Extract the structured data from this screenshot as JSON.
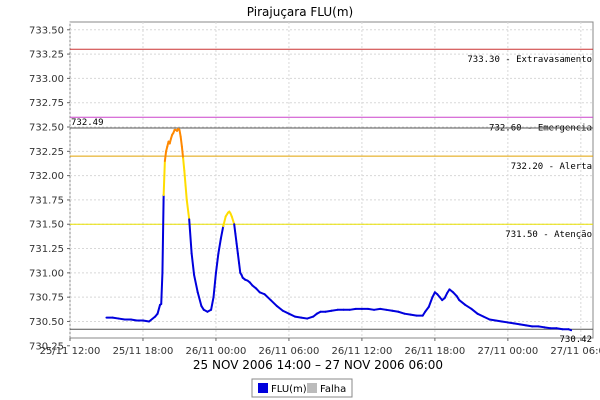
{
  "chart_data": {
    "type": "line",
    "title": "Pirajuçara FLU(m)",
    "xlabel": "25 NOV 2006 14:00 – 27 NOV 2006 06:00",
    "ylabel": "",
    "x_unit": "hours since 25/11 12:00",
    "xlim": [
      0,
      43
    ],
    "ylim": [
      730.33,
      733.58
    ],
    "y_ticks": [
      730.25,
      730.5,
      730.75,
      731.0,
      731.25,
      731.5,
      731.75,
      732.0,
      732.25,
      732.5,
      732.75,
      733.0,
      733.25,
      733.5
    ],
    "y_tick_labels": [
      "730.25",
      "730.50",
      "730.75",
      "731.00",
      "731.25",
      "731.50",
      "731.75",
      "732.00",
      "732.25",
      "732.50",
      "732.75",
      "733.00",
      "733.25",
      "733.50"
    ],
    "x_ticks": [
      0,
      6,
      12,
      18,
      24,
      30,
      36,
      42
    ],
    "x_tick_labels": [
      "25/11 12:00",
      "25/11 18:00",
      "26/11 00:00",
      "26/11 06:00",
      "26/11 12:00",
      "26/11 18:00",
      "27/11 00:00",
      "27/11 06:00"
    ],
    "grid": true,
    "thresholds": [
      {
        "label": "733.30 - Extravasamento",
        "value": 733.3,
        "color": "#cc3333"
      },
      {
        "label": "732.60 - Emergencia",
        "value": 732.6,
        "color": "#cc44cc"
      },
      {
        "label": "732.20 - Alerta",
        "value": 732.2,
        "color": "#e0a000"
      },
      {
        "label": "731.50 - Atenção",
        "value": 731.5,
        "color": "#e8e000"
      }
    ],
    "extra_lines": [
      {
        "label": "732.49",
        "value": 732.49,
        "color": "#555555"
      },
      {
        "label": "730.42",
        "value": 730.42,
        "color": "#555555"
      }
    ],
    "series": [
      {
        "name": "FLU(m)",
        "color": "#0000dd",
        "x": [
          3.0,
          3.5,
          4.0,
          4.5,
          5.0,
          5.5,
          6.0,
          6.5,
          7.0,
          7.2,
          7.4,
          7.5,
          7.6,
          7.7,
          7.8,
          7.9,
          8.0,
          8.1,
          8.2,
          8.3,
          8.4,
          8.5,
          8.6,
          8.7,
          8.8,
          8.9,
          9.0,
          9.1,
          9.2,
          9.3,
          9.4,
          9.5,
          9.6,
          9.8,
          10.0,
          10.2,
          10.5,
          10.8,
          11.0,
          11.3,
          11.6,
          11.8,
          12.0,
          12.2,
          12.4,
          12.6,
          12.8,
          13.0,
          13.1,
          13.2,
          13.3,
          13.5,
          13.6,
          13.7,
          13.8,
          13.9,
          14.0,
          14.1,
          14.2,
          14.4,
          14.6,
          14.8,
          15.0,
          15.3,
          15.6,
          16.0,
          16.5,
          17.0,
          17.5,
          18.0,
          18.5,
          19.0,
          19.5,
          20.0,
          20.3,
          20.6,
          21.0,
          21.5,
          22.0,
          22.5,
          23.0,
          23.5,
          24.0,
          24.5,
          25.0,
          25.5,
          26.0,
          26.5,
          27.0,
          27.5,
          28.0,
          28.5,
          29.0,
          29.2,
          29.5,
          29.8,
          30.0,
          30.2,
          30.4,
          30.6,
          30.8,
          31.0,
          31.2,
          31.5,
          31.8,
          32.0,
          32.5,
          33.0,
          33.5,
          34.0,
          34.5,
          35.0,
          35.5,
          36.0,
          36.5,
          37.0,
          37.5,
          38.0,
          38.5,
          39.0,
          39.5,
          40.0,
          40.5,
          41.0,
          41.2
        ],
        "y": [
          730.54,
          730.54,
          730.53,
          730.52,
          730.52,
          730.51,
          730.51,
          730.5,
          730.55,
          730.58,
          730.67,
          730.68,
          731.0,
          731.8,
          732.15,
          732.25,
          732.3,
          732.35,
          732.33,
          732.38,
          732.42,
          732.44,
          732.47,
          732.47,
          732.46,
          732.48,
          732.47,
          732.4,
          732.3,
          732.18,
          732.05,
          731.9,
          731.75,
          731.55,
          731.2,
          730.98,
          730.8,
          730.66,
          730.62,
          730.6,
          730.62,
          730.75,
          731.0,
          731.2,
          731.35,
          731.48,
          731.58,
          731.62,
          731.63,
          731.61,
          731.58,
          731.5,
          731.4,
          731.3,
          731.2,
          731.1,
          731.0,
          730.98,
          730.95,
          730.93,
          730.92,
          730.9,
          730.87,
          730.84,
          730.8,
          730.78,
          730.72,
          730.66,
          730.61,
          730.58,
          730.55,
          730.54,
          730.53,
          730.55,
          730.58,
          730.6,
          730.6,
          730.61,
          730.62,
          730.62,
          730.62,
          730.63,
          730.63,
          730.63,
          730.62,
          730.63,
          730.62,
          730.61,
          730.6,
          730.58,
          730.57,
          730.56,
          730.56,
          730.6,
          730.65,
          730.75,
          730.8,
          730.78,
          730.75,
          730.72,
          730.74,
          730.79,
          730.83,
          730.8,
          730.76,
          730.72,
          730.67,
          730.63,
          730.58,
          730.55,
          730.52,
          730.51,
          730.5,
          730.49,
          730.48,
          730.47,
          730.46,
          730.45,
          730.45,
          730.44,
          730.43,
          730.43,
          730.42,
          730.42,
          730.41
        ]
      },
      {
        "name": "Falha",
        "color": "#bbbbbb",
        "x": [],
        "y": []
      }
    ],
    "legend": "bottom-center"
  }
}
